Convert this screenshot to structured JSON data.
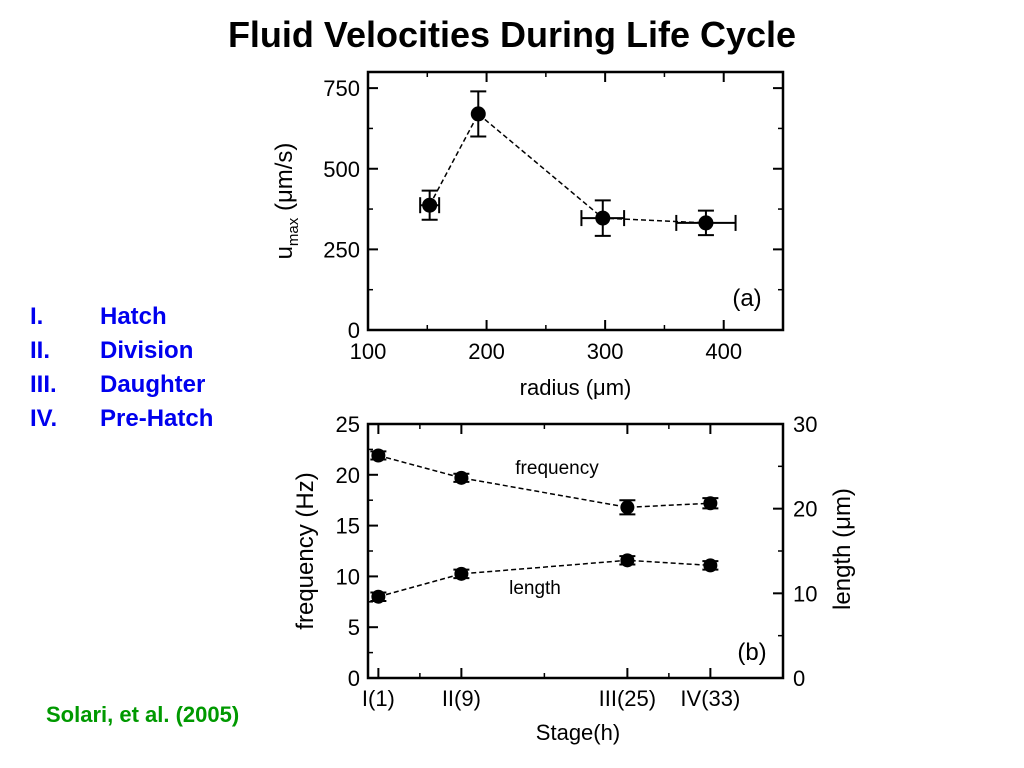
{
  "title": "Fluid Velocities During Life Cycle",
  "stages": [
    {
      "num": "I.",
      "label": "Hatch"
    },
    {
      "num": "II.",
      "label": "Division"
    },
    {
      "num": "III.",
      "label": "Daughter"
    },
    {
      "num": "IV.",
      "label": "Pre-Hatch"
    }
  ],
  "citation": "Solari, et al. (2005)",
  "chart_data": [
    {
      "type": "scatter",
      "panel_label": "(a)",
      "xlabel": "radius (μm)",
      "ylabel_main": "u",
      "ylabel_sub": "max",
      "ylabel_rest": " (μm/s)",
      "xlim": [
        100,
        450
      ],
      "ylim": [
        0,
        800
      ],
      "x_ticks": [
        100,
        200,
        300,
        400
      ],
      "y_ticks": [
        0,
        250,
        500,
        750
      ],
      "series": [
        {
          "points": [
            {
              "x": 152,
              "y": 387,
              "xerr": 8,
              "yerr": 45
            },
            {
              "x": 193,
              "y": 670,
              "xerr": 0,
              "yerr": 70
            },
            {
              "x": 298,
              "y": 347,
              "xerr": 18,
              "yerr": 55
            },
            {
              "x": 385,
              "y": 332,
              "xerr": 25,
              "yerr": 38
            }
          ]
        }
      ]
    },
    {
      "type": "line",
      "panel_label": "(b)",
      "xlabel": "Stage(h)",
      "ylabel_left": "frequency (Hz)",
      "ylabel_right": "length (μm)",
      "categories": [
        "I(1)",
        "II(9)",
        "III(25)",
        "IV(33)"
      ],
      "x": [
        1,
        9,
        25,
        33
      ],
      "xlim": [
        0,
        40
      ],
      "ylim_left": [
        0,
        25
      ],
      "ylim_right": [
        0,
        30
      ],
      "y_ticks_left": [
        0,
        5,
        10,
        15,
        20,
        25
      ],
      "y_ticks_right": [
        0,
        10,
        20,
        30
      ],
      "series": [
        {
          "name": "frequency",
          "axis": "left",
          "values": [
            21.9,
            19.7,
            16.8,
            17.2
          ],
          "err": [
            0.4,
            0.4,
            0.7,
            0.5
          ]
        },
        {
          "name": "length",
          "axis": "right",
          "values": [
            9.6,
            12.3,
            13.9,
            13.3
          ],
          "err": [
            0.5,
            0.5,
            0.5,
            0.5
          ]
        }
      ]
    }
  ]
}
